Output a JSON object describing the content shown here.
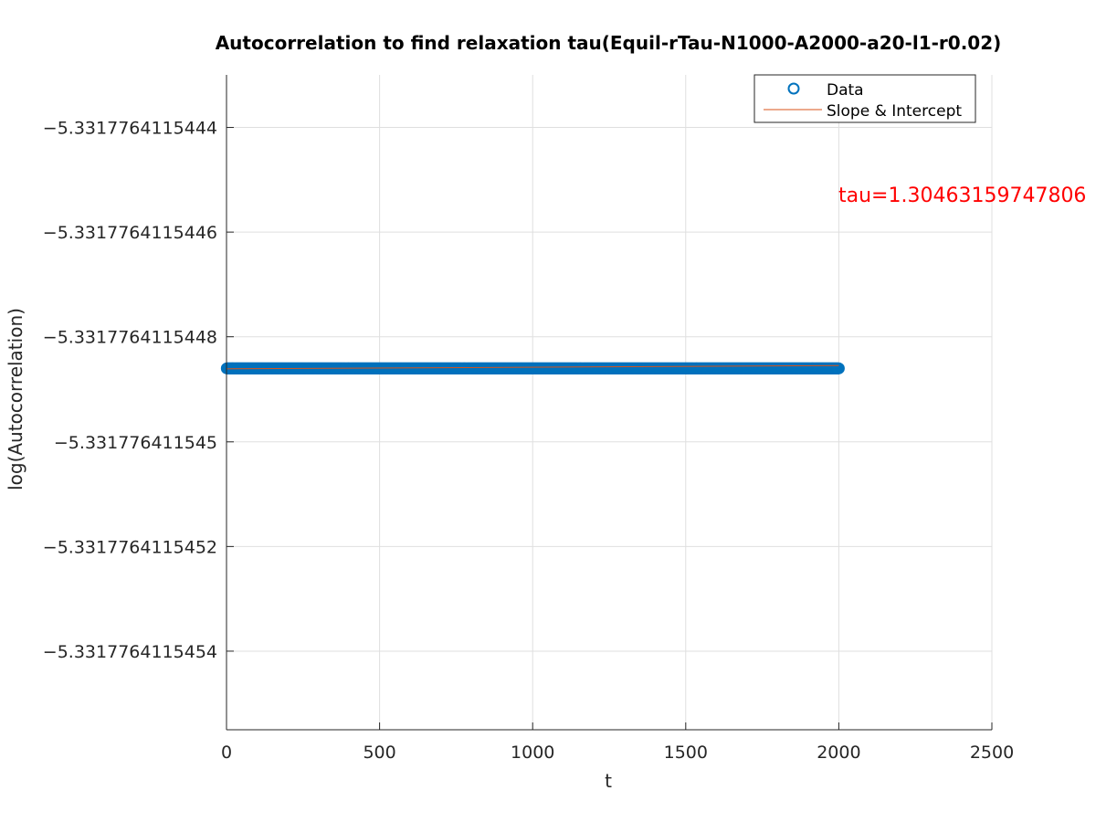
{
  "chart_data": {
    "type": "scatter",
    "title": "Autocorrelation to find relaxation tau(Equil-rTau-N1000-A2000-a20-l1-r0.02)",
    "xlabel": "t",
    "ylabel": "log(Autocorrelation)",
    "xlim": [
      0,
      2500
    ],
    "ylim": [
      -5.33177641154555,
      -5.3317764115443
    ],
    "xticks": [
      0,
      500,
      1000,
      1500,
      2000,
      2500
    ],
    "xtick_labels": [
      "0",
      "500",
      "1000",
      "1500",
      "2000",
      "2500"
    ],
    "yticks": [
      -5.3317764115444,
      -5.3317764115446,
      -5.3317764115448,
      -5.331776411545,
      -5.3317764115452,
      -5.3317764115454
    ],
    "ytick_labels": [
      "−5.3317764115444",
      "−5.3317764115446",
      "−5.3317764115448",
      "−5.331776411545",
      "−5.3317764115452",
      "−5.3317764115454"
    ],
    "grid": true,
    "legend_position": "top-right",
    "series": [
      {
        "name": "Data",
        "style": "markers",
        "marker": "circle",
        "color": "#0072bd",
        "x_start": 1,
        "x_end": 2000,
        "x_step": 1,
        "y_value": -5.33177641154486
      },
      {
        "name": "Slope & Intercept",
        "style": "line",
        "color": "#d95319",
        "x": [
          1,
          2000
        ],
        "y": [
          -5.331776411544861,
          -5.331776411544855
        ]
      }
    ],
    "annotation": {
      "text": "tau=1.30463159747806",
      "color": "#ff0000"
    }
  }
}
